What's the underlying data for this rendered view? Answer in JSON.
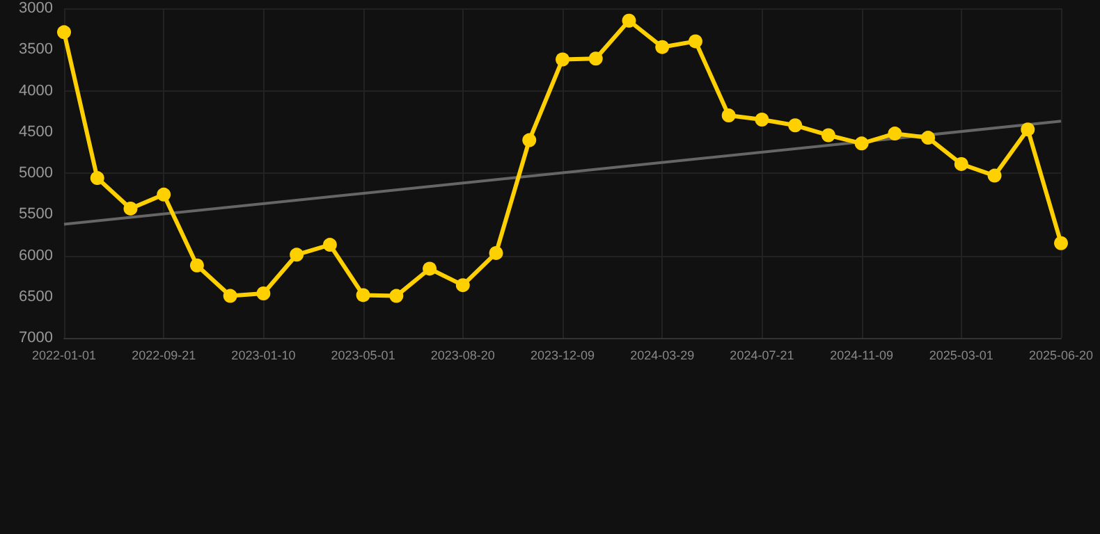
{
  "chart_data": {
    "type": "line",
    "categories": [
      "2022-01-01",
      null,
      null,
      "2022-09-21",
      null,
      null,
      "2023-01-10",
      null,
      null,
      "2023-05-01",
      null,
      null,
      "2023-08-20",
      null,
      null,
      "2023-12-09",
      null,
      null,
      "2024-03-29",
      null,
      null,
      "2024-07-21",
      null,
      null,
      "2024-11-09",
      null,
      null,
      "2025-03-01",
      null,
      null,
      "2025-06-20"
    ],
    "series": [
      {
        "color": "#ffd000",
        "values": [
          3290,
          5060,
          5430,
          5260,
          6120,
          6490,
          6460,
          5990,
          5870,
          6480,
          6490,
          6160,
          6360,
          5970,
          4600,
          3620,
          3610,
          3150,
          3470,
          3400,
          4300,
          4350,
          4420,
          4540,
          4640,
          4520,
          4570,
          4890,
          5030,
          4470,
          5850
        ]
      },
      {
        "type": "line",
        "color": "#666666",
        "marker": "none",
        "values": [
          5620,
          null,
          null,
          null,
          null,
          null,
          null,
          null,
          null,
          null,
          null,
          null,
          null,
          null,
          null,
          null,
          null,
          null,
          null,
          null,
          null,
          null,
          null,
          null,
          null,
          null,
          null,
          null,
          null,
          null,
          4370
        ]
      }
    ],
    "ylim": [
      7000,
      3000
    ],
    "yticks": [
      3000,
      3500,
      4000,
      4500,
      5000,
      5500,
      6000,
      6500,
      7000
    ],
    "grid": true,
    "marker": "circle"
  }
}
